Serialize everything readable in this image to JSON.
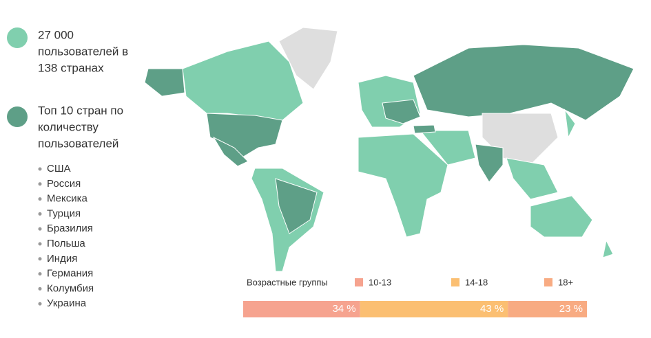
{
  "legend": [
    {
      "lines": [
        "27 000",
        "пользователей в",
        "138 странах"
      ]
    },
    {
      "lines": [
        "Топ 10 стран по",
        "количеству",
        "пользователей"
      ]
    }
  ],
  "top_countries": [
    "США",
    "Россия",
    "Мексика",
    "Турция",
    "Бразилия",
    "Польша",
    "Индия",
    "Германия",
    "Колумбия",
    "Украина"
  ],
  "chart_data": {
    "type": "stacked-bar",
    "title": "Возрастные группы",
    "series": [
      {
        "name": "10-13",
        "color": "#f6a38f",
        "values": [
          34
        ],
        "value_labels": [
          "34 %"
        ]
      },
      {
        "name": "14-18",
        "color": "#fbbf72",
        "values": [
          43
        ],
        "value_labels": [
          "43 %"
        ]
      },
      {
        "name": "18+",
        "color": "#f8ab82",
        "values": [
          23
        ],
        "value_labels": [
          "23 %"
        ]
      }
    ]
  }
}
